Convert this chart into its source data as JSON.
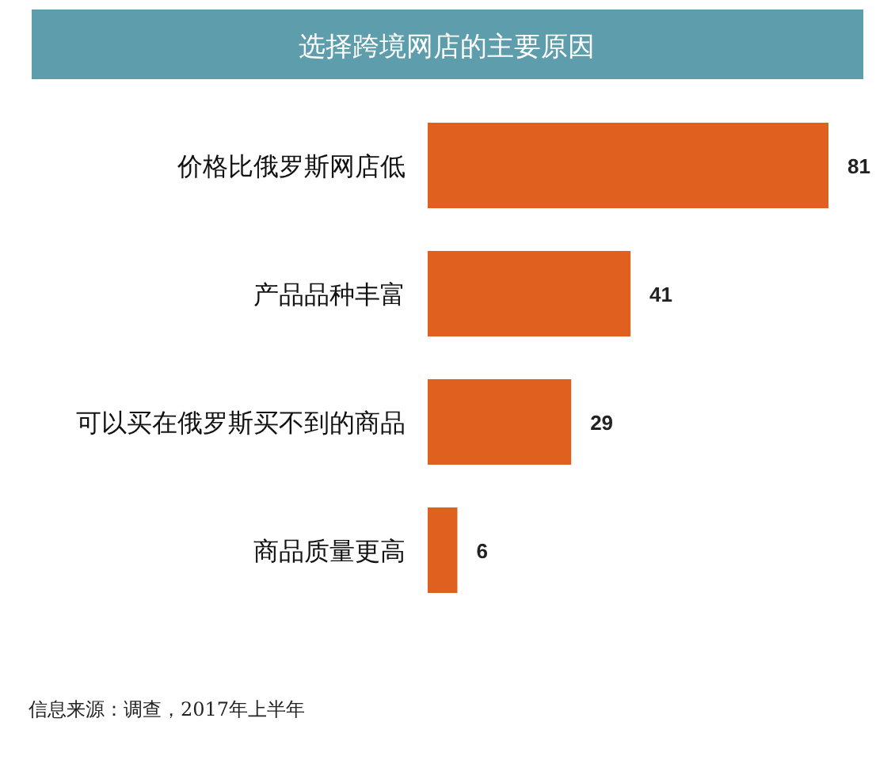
{
  "chart_data": {
    "type": "bar",
    "orientation": "horizontal",
    "title": "选择跨境网店的主要原因",
    "categories": [
      "价格比俄罗斯网店低",
      "产品品种丰富",
      "可以买在俄罗斯买不到的商品",
      "商品质量更高"
    ],
    "values": [
      81,
      41,
      29,
      6
    ],
    "color": "#e0601f",
    "data_labels": true,
    "annotations": [
      "信息来源：调查，2017年上半年"
    ]
  }
}
